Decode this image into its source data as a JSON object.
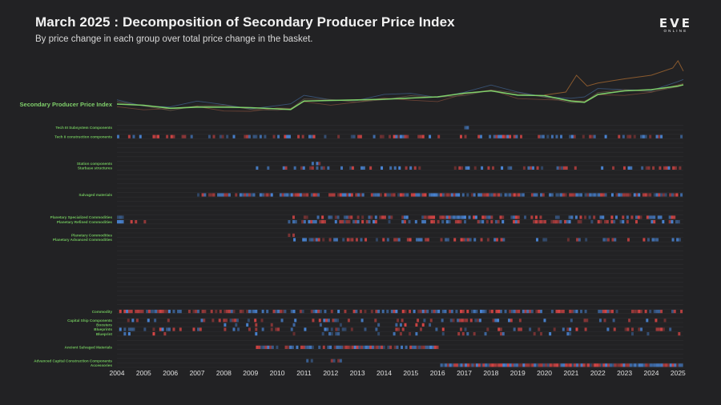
{
  "header": {
    "title": "March 2025 : Decomposition of Secondary Producer Price Index",
    "subtitle": "By price change in each group over total price change in the basket."
  },
  "logo": {
    "main": "EVE",
    "sub": "ONLINE"
  },
  "colors": {
    "background": "#222224",
    "index_line": "#7fcf6a",
    "positive": "#4a86d6",
    "negative": "#d64545",
    "label_bright": "#6fc05b",
    "label_dim": "#3a5a35",
    "grid": "#2e2e30"
  },
  "chart_data": {
    "type": "heatmap",
    "title": "March 2025 : Decomposition of Secondary Producer Price Index",
    "x_labels": [
      "2004",
      "2005",
      "2006",
      "2007",
      "2008",
      "2009",
      "2010",
      "2011",
      "2012",
      "2013",
      "2014",
      "2015",
      "2016",
      "2017",
      "2018",
      "2019",
      "2020",
      "2021",
      "2022",
      "2023",
      "2024",
      "2025"
    ],
    "xlim": [
      2004,
      2025.2
    ],
    "index_series": {
      "name": "Secondary Producer Price Index",
      "x": [
        2004,
        2005,
        2006,
        2007,
        2008,
        2009,
        2010,
        2010.5,
        2011,
        2012,
        2013,
        2014,
        2015,
        2016,
        2017,
        2018,
        2019,
        2020,
        2021,
        2021.5,
        2022,
        2023,
        2024,
        2025,
        2025.2
      ],
      "y": [
        1.0,
        0.98,
        0.93,
        0.95,
        0.95,
        0.94,
        0.92,
        0.91,
        1.05,
        1.06,
        1.07,
        1.08,
        1.1,
        1.12,
        1.18,
        1.22,
        1.15,
        1.14,
        1.05,
        1.03,
        1.16,
        1.22,
        1.24,
        1.3,
        1.32
      ]
    },
    "rows": [
      {
        "label": "",
        "bright": false
      },
      {
        "label": "Tech III Subsystem Components",
        "bright": true
      },
      {
        "label": "",
        "bright": false
      },
      {
        "label": "Tech II construction components",
        "bright": true
      },
      {
        "label": "",
        "bright": false
      },
      {
        "label": "",
        "bright": false
      },
      {
        "label": "",
        "bright": false
      },
      {
        "label": "",
        "bright": false
      },
      {
        "label": "",
        "bright": false
      },
      {
        "label": "Station components",
        "bright": true
      },
      {
        "label": "Starbase structures",
        "bright": true
      },
      {
        "label": "",
        "bright": false
      },
      {
        "label": "",
        "bright": false
      },
      {
        "label": "",
        "bright": false
      },
      {
        "label": "",
        "bright": false
      },
      {
        "label": "",
        "bright": false
      },
      {
        "label": "Salvaged materials",
        "bright": true
      },
      {
        "label": "",
        "bright": false
      },
      {
        "label": "",
        "bright": false
      },
      {
        "label": "",
        "bright": false
      },
      {
        "label": "",
        "bright": false
      },
      {
        "label": "Planetary Specialized Commodities",
        "bright": true
      },
      {
        "label": "Planetary Refined Commodities",
        "bright": true
      },
      {
        "label": "",
        "bright": false
      },
      {
        "label": "",
        "bright": false
      },
      {
        "label": "Planetary Commodities",
        "bright": true
      },
      {
        "label": "Planetary Advanced Commodities",
        "bright": true
      },
      {
        "label": "",
        "bright": false
      },
      {
        "label": "",
        "bright": false
      },
      {
        "label": "",
        "bright": false
      },
      {
        "label": "",
        "bright": false
      },
      {
        "label": "",
        "bright": false
      },
      {
        "label": "",
        "bright": false
      },
      {
        "label": "",
        "bright": false
      },
      {
        "label": "",
        "bright": false
      },
      {
        "label": "",
        "bright": false
      },
      {
        "label": "",
        "bright": false
      },
      {
        "label": "",
        "bright": false
      },
      {
        "label": "",
        "bright": false
      },
      {
        "label": "",
        "bright": false
      },
      {
        "label": "",
        "bright": false
      },
      {
        "label": "",
        "bright": false
      },
      {
        "label": "Commodity",
        "bright": true
      },
      {
        "label": "",
        "bright": false
      },
      {
        "label": "Capital Ship Components",
        "bright": true
      },
      {
        "label": "Boosters",
        "bright": true
      },
      {
        "label": "Blueprints",
        "bright": true
      },
      {
        "label": "Blueprint",
        "bright": true
      },
      {
        "label": "",
        "bright": false
      },
      {
        "label": "",
        "bright": false
      },
      {
        "label": "Ancient Salvaged Materials",
        "bright": true
      },
      {
        "label": "",
        "bright": false
      },
      {
        "label": "",
        "bright": false
      },
      {
        "label": "Advanced Capital Construction Components",
        "bright": true
      },
      {
        "label": "Accessories",
        "bright": true
      }
    ],
    "active_bands": [
      {
        "row": 1,
        "from": 2017.0,
        "to": 2017.1,
        "density": 1.0
      },
      {
        "row": 3,
        "from": 2004.0,
        "to": 2025.1,
        "density": 0.45
      },
      {
        "row": 9,
        "from": 2011.2,
        "to": 2011.6,
        "density": 0.5
      },
      {
        "row": 10,
        "from": 2009.2,
        "to": 2025.1,
        "density": 0.35
      },
      {
        "row": 16,
        "from": 2007.0,
        "to": 2025.1,
        "density": 0.8
      },
      {
        "row": 21,
        "from": 2004.0,
        "to": 2004.2,
        "density": 1.0
      },
      {
        "row": 21,
        "from": 2010.4,
        "to": 2025.1,
        "density": 0.55
      },
      {
        "row": 22,
        "from": 2004.0,
        "to": 2005.0,
        "density": 0.4
      },
      {
        "row": 22,
        "from": 2010.4,
        "to": 2025.1,
        "density": 0.5
      },
      {
        "row": 25,
        "from": 2010.4,
        "to": 2010.8,
        "density": 0.5
      },
      {
        "row": 26,
        "from": 2010.6,
        "to": 2025.1,
        "density": 0.45
      },
      {
        "row": 42,
        "from": 2004.0,
        "to": 2025.1,
        "density": 0.6
      },
      {
        "row": 44,
        "from": 2004.3,
        "to": 2025.1,
        "density": 0.25
      },
      {
        "row": 45,
        "from": 2008.0,
        "to": 2016.0,
        "density": 0.2
      },
      {
        "row": 46,
        "from": 2004.0,
        "to": 2025.1,
        "density": 0.3
      },
      {
        "row": 47,
        "from": 2004.0,
        "to": 2025.1,
        "density": 0.15
      },
      {
        "row": 50,
        "from": 2009.2,
        "to": 2016.0,
        "density": 0.8
      },
      {
        "row": 53,
        "from": 2011.0,
        "to": 2012.4,
        "density": 0.6
      },
      {
        "row": 54,
        "from": 2016.1,
        "to": 2025.1,
        "density": 1.0
      }
    ]
  }
}
